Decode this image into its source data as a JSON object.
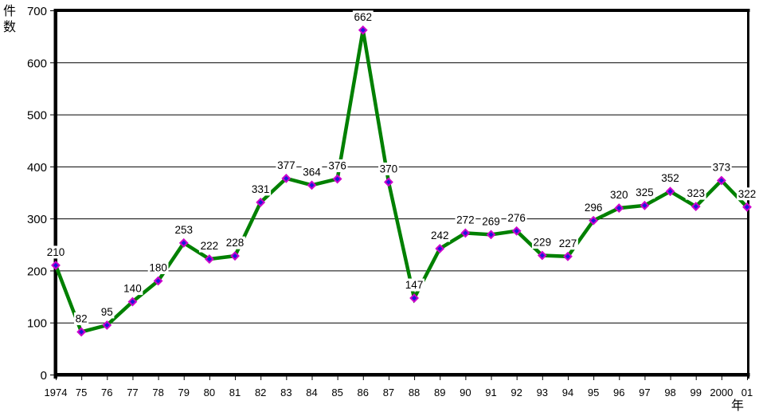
{
  "chart_data": {
    "type": "line",
    "title": "",
    "ylabel": "件数",
    "xlabel": "年",
    "categories": [
      "1974",
      "75",
      "76",
      "77",
      "78",
      "79",
      "80",
      "81",
      "82",
      "83",
      "84",
      "85",
      "86",
      "87",
      "88",
      "89",
      "90",
      "91",
      "92",
      "93",
      "94",
      "95",
      "96",
      "97",
      "98",
      "99",
      "2000",
      "01"
    ],
    "series": [
      {
        "name": "件数",
        "values": [
          210,
          82,
          95,
          140,
          180,
          253,
          222,
          228,
          331,
          377,
          364,
          376,
          662,
          370,
          147,
          242,
          272,
          269,
          276,
          229,
          227,
          296,
          320,
          325,
          352,
          323,
          373,
          322
        ]
      }
    ],
    "ylim": [
      0,
      700
    ],
    "yticks": [
      0,
      100,
      200,
      300,
      400,
      500,
      600,
      700
    ],
    "grid": "horizontal",
    "legend_position": "none",
    "data_labels_visible": true,
    "colors": {
      "line": "#008000",
      "marker_fill": "#1a1ad9",
      "marker_border": "#cc00cc",
      "gridline": "#000000",
      "axis": "#000000",
      "text": "#000000",
      "plot_background": "#ffffff",
      "label_background": "#ffffff"
    },
    "marker_shape": "diamond"
  }
}
